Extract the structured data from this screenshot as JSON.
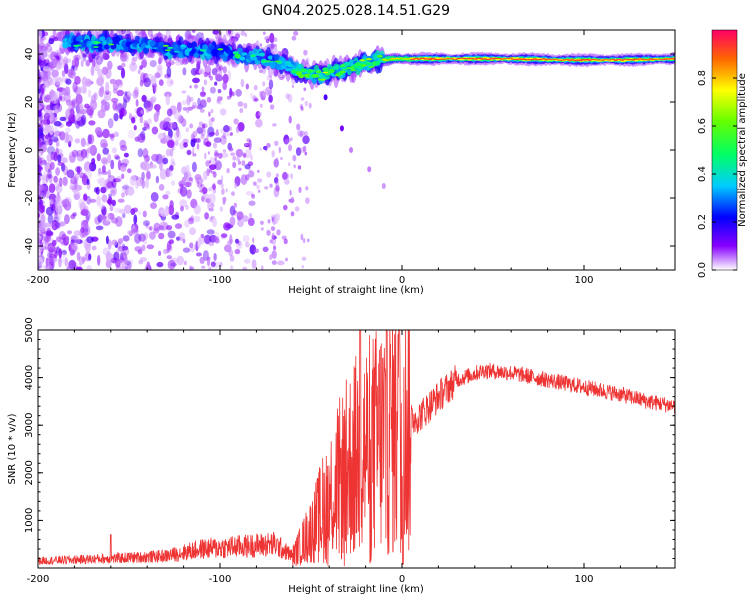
{
  "chart_data": [
    {
      "type": "heatmap",
      "title": "GN04.2025.028.14.51.G29",
      "xlabel": "Height of straight line (km)",
      "ylabel": "Frequency (Hz)",
      "xlim": [
        -200,
        150
      ],
      "ylim": [
        -50,
        50
      ],
      "xticks": [
        -200,
        -100,
        0,
        100
      ],
      "yticks": [
        -40,
        -20,
        0,
        20,
        40
      ],
      "colorbar": {
        "label": "Normalized spectral amplitude",
        "range": [
          0,
          1
        ],
        "ticks": [
          0.0,
          0.2,
          0.4,
          0.6,
          0.8
        ]
      },
      "ridge": [
        {
          "x": -175,
          "y": 45
        },
        {
          "x": -150,
          "y": 44
        },
        {
          "x": -125,
          "y": 42
        },
        {
          "x": -100,
          "y": 41
        },
        {
          "x": -80,
          "y": 39
        },
        {
          "x": -65,
          "y": 36
        },
        {
          "x": -55,
          "y": 32
        },
        {
          "x": -45,
          "y": 31
        },
        {
          "x": -35,
          "y": 33
        },
        {
          "x": -25,
          "y": 35
        },
        {
          "x": -15,
          "y": 37
        },
        {
          "x": -5,
          "y": 38
        },
        {
          "x": 10,
          "y": 38
        },
        {
          "x": 30,
          "y": 38
        },
        {
          "x": 60,
          "y": 38
        },
        {
          "x": 90,
          "y": 37.5
        },
        {
          "x": 120,
          "y": 37.5
        },
        {
          "x": 150,
          "y": 38
        }
      ]
    },
    {
      "type": "line",
      "xlabel": "Height of straight line (km)",
      "ylabel": "SNR (10 * v/v)",
      "xlim": [
        -200,
        150
      ],
      "ylim": [
        0,
        5000
      ],
      "xticks": [
        -200,
        -100,
        0,
        100
      ],
      "yticks": [
        1000,
        2000,
        3000,
        4000,
        5000
      ],
      "color": "#ee3333",
      "envelope": [
        {
          "x": -200,
          "y": 150
        },
        {
          "x": -160,
          "y": 200
        },
        {
          "x": -130,
          "y": 250
        },
        {
          "x": -110,
          "y": 400
        },
        {
          "x": -90,
          "y": 450
        },
        {
          "x": -70,
          "y": 500
        },
        {
          "x": -60,
          "y": 250
        },
        {
          "x": -48,
          "y": 900
        },
        {
          "x": -40,
          "y": 1500
        },
        {
          "x": -30,
          "y": 2100
        },
        {
          "x": -22,
          "y": 2500
        },
        {
          "x": -15,
          "y": 2600
        },
        {
          "x": -8,
          "y": 2900
        },
        {
          "x": 0,
          "y": 3000
        },
        {
          "x": 10,
          "y": 3200
        },
        {
          "x": 20,
          "y": 3600
        },
        {
          "x": 30,
          "y": 3950
        },
        {
          "x": 45,
          "y": 4150
        },
        {
          "x": 60,
          "y": 4100
        },
        {
          "x": 80,
          "y": 3950
        },
        {
          "x": 100,
          "y": 3800
        },
        {
          "x": 120,
          "y": 3650
        },
        {
          "x": 135,
          "y": 3500
        },
        {
          "x": 150,
          "y": 3400
        }
      ]
    }
  ]
}
